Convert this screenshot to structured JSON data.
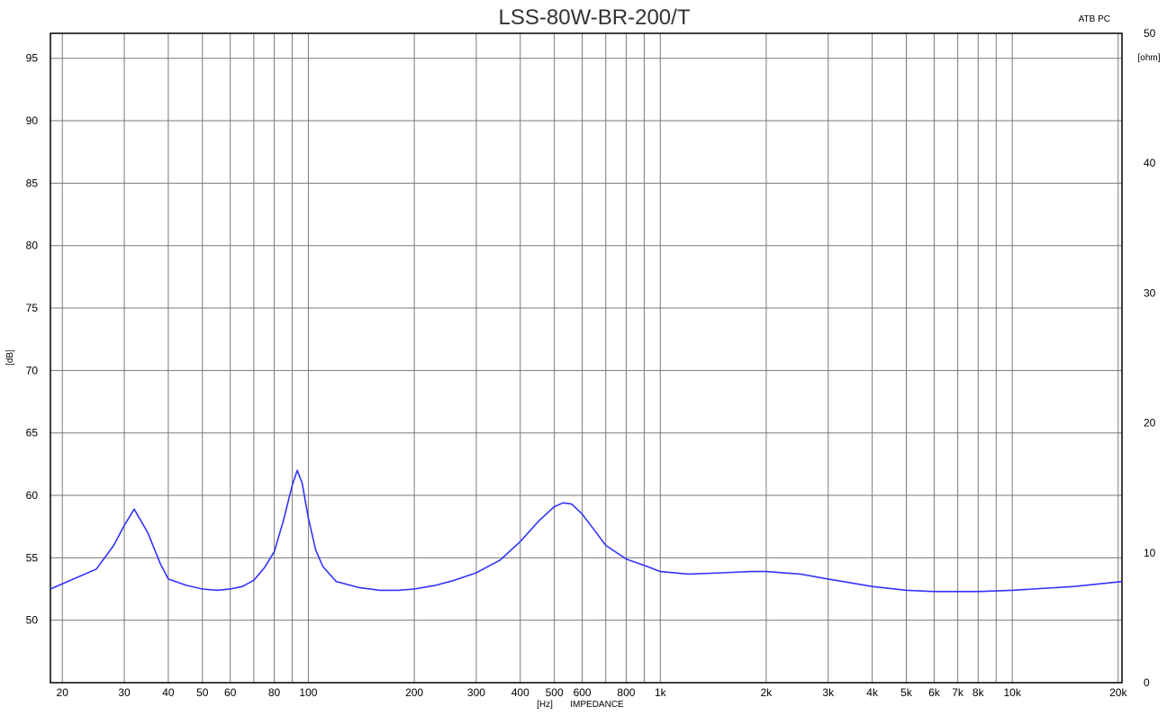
{
  "chart_data": {
    "type": "line",
    "title": "LSS-80W-BR-200/T",
    "corner_label": "ATB PC",
    "x_scale": "log",
    "xlim": [
      18.5,
      20500
    ],
    "ylim": [
      45,
      97
    ],
    "y2lim": [
      0,
      50
    ],
    "ylabel": "[dB]",
    "y2label": "[ohm]",
    "xlabel_unit": "[Hz]",
    "xlabel": "IMPEDANCE",
    "x_ticks": [
      20,
      30,
      40,
      50,
      60,
      80,
      100,
      200,
      300,
      400,
      500,
      600,
      800,
      1000,
      2000,
      3000,
      4000,
      5000,
      6000,
      7000,
      8000,
      10000,
      20000
    ],
    "x_tick_labels": [
      "20",
      "30",
      "40",
      "50",
      "60",
      "80",
      "100",
      "200",
      "300",
      "400",
      "500",
      "600",
      "800",
      "1k",
      "2k",
      "3k",
      "4k",
      "5k",
      "6k",
      "7k",
      "8k",
      "10k",
      "20k"
    ],
    "x_grid": [
      20,
      30,
      40,
      50,
      60,
      70,
      80,
      90,
      100,
      200,
      300,
      400,
      500,
      600,
      700,
      800,
      900,
      1000,
      2000,
      3000,
      4000,
      5000,
      6000,
      7000,
      8000,
      9000,
      10000,
      20000
    ],
    "y_ticks": [
      50,
      55,
      60,
      65,
      70,
      75,
      80,
      85,
      90,
      95
    ],
    "y2_ticks": [
      0,
      10,
      20,
      30,
      40,
      50
    ],
    "grid": true,
    "line_color": "#3333ff",
    "series": [
      {
        "values_axis": "left",
        "x": [
          18.5,
          25,
          28,
          30,
          32,
          35,
          38,
          40,
          45,
          50,
          55,
          60,
          65,
          70,
          75,
          80,
          85,
          90,
          93,
          96,
          100,
          105,
          110,
          120,
          140,
          160,
          180,
          200,
          210,
          230,
          260,
          300,
          350,
          400,
          450,
          500,
          530,
          560,
          600,
          650,
          700,
          800,
          900,
          1000,
          1200,
          1500,
          1800,
          2000,
          2500,
          3000,
          4000,
          5000,
          6000,
          7000,
          8000,
          10000,
          15000,
          20500
        ],
        "y": [
          52.5,
          54.1,
          56.0,
          57.6,
          58.9,
          57.0,
          54.5,
          53.3,
          52.8,
          52.5,
          52.4,
          52.5,
          52.7,
          53.2,
          54.2,
          55.5,
          58.0,
          60.8,
          62.0,
          61.0,
          58.2,
          55.6,
          54.3,
          53.1,
          52.6,
          52.4,
          52.4,
          52.5,
          52.6,
          52.8,
          53.2,
          53.8,
          54.8,
          56.3,
          57.9,
          59.1,
          59.4,
          59.3,
          58.5,
          57.2,
          56.0,
          54.9,
          54.4,
          53.9,
          53.7,
          53.8,
          53.9,
          53.9,
          53.7,
          53.3,
          52.7,
          52.4,
          52.3,
          52.3,
          52.3,
          52.4,
          52.7,
          53.1
        ]
      }
    ]
  }
}
